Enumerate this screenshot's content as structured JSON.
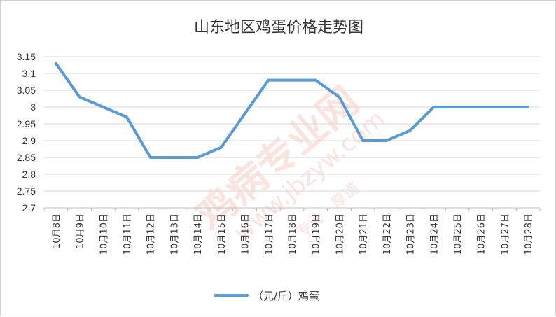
{
  "chart_data": {
    "type": "line",
    "title": "山东地区鸡蛋价格走势图",
    "xlabel": "",
    "ylabel": "",
    "categories": [
      "10月8日",
      "10月9日",
      "10月10日",
      "10月11日",
      "10月12日",
      "10月13日",
      "10月14日",
      "10月15日",
      "10月16日",
      "10月17日",
      "10月18日",
      "10月19日",
      "10月20日",
      "10月21日",
      "10月22日",
      "10月23日",
      "10月24日",
      "10月25日",
      "10月26日",
      "10月27日",
      "10月28日"
    ],
    "series": [
      {
        "name": "（元/斤）鸡蛋",
        "color": "#5b9bd5",
        "values": [
          3.13,
          3.03,
          3.0,
          2.97,
          2.85,
          2.85,
          2.85,
          2.88,
          2.98,
          3.08,
          3.08,
          3.08,
          3.03,
          2.9,
          2.9,
          2.93,
          3.0,
          3.0,
          3.0,
          3.0,
          3.0
        ]
      }
    ],
    "ylim": [
      2.7,
      3.15
    ],
    "yticks": [
      "2.7",
      "2.75",
      "2.8",
      "2.85",
      "2.9",
      "2.95",
      "3",
      "3.05",
      "3.1",
      "3.15"
    ],
    "grid": true,
    "legend": "bottom"
  },
  "watermark": {
    "main": "鸡病专业网",
    "url": "www.jbzyw.com",
    "sub": "专业 · 厚道",
    "color": "#e8583b"
  }
}
